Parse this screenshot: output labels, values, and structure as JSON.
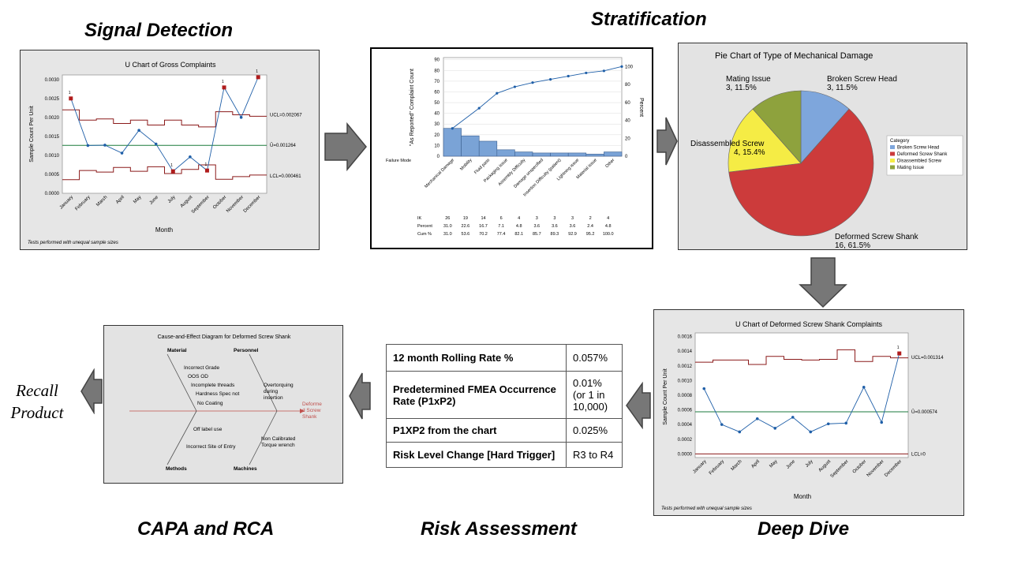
{
  "stage_titles": {
    "signal_detection": "Signal Detection",
    "stratification": "Stratification",
    "deep_dive": "Deep Dive",
    "risk_assessment": "Risk Assessment",
    "capa_rca": "CAPA and RCA",
    "recall_line1": "Recall",
    "recall_line2": "Product"
  },
  "u_chart_gross": {
    "title": "U Chart of Gross Complaints",
    "ylabel": "Sample Count Per Unit",
    "xlabel": "Month",
    "footnote": "Tests performed with unequal sample sizes",
    "ucl_label": "UCL=0.002067",
    "center_label": "Ū=0.001264",
    "lcl_label": "LCL=0.000461",
    "yticks": [
      "0.0030",
      "0.0025",
      "0.0020",
      "0.0015",
      "0.0010",
      "0.0005",
      "0.0000"
    ],
    "months": [
      "January",
      "February",
      "March",
      "April",
      "May",
      "June",
      "July",
      "August",
      "September",
      "October",
      "November",
      "December"
    ],
    "flag": "1"
  },
  "pareto": {
    "ylabel": "\"As Reported\" Complaint Count",
    "ylabel_right": "Percent",
    "yticks_left": [
      "90",
      "80",
      "70",
      "60",
      "50",
      "40",
      "30",
      "20",
      "10",
      "0"
    ],
    "yticks_right": [
      "100",
      "80",
      "60",
      "40",
      "20",
      "0"
    ],
    "category_axis_label": "Failure Mode",
    "categories": [
      "Mechanical Damage",
      "Mobility",
      "Fluid pass",
      "Packaging issue",
      "Assembly Difficulty",
      "Damage unspecified",
      "Insertion Difficulty (patient)",
      "Lightning issue",
      "Material issue",
      "Other"
    ],
    "counts": [
      "26",
      "19",
      "14",
      "6",
      "4",
      "3",
      "3",
      "3",
      "2",
      "4"
    ],
    "percent": [
      "31.0",
      "22.6",
      "16.7",
      "7.1",
      "4.8",
      "3.6",
      "3.6",
      "3.6",
      "2.4",
      "4.8"
    ],
    "cum": [
      "31.0",
      "53.6",
      "70.2",
      "77.4",
      "82.1",
      "85.7",
      "89.3",
      "92.9",
      "95.2",
      "100.0"
    ],
    "row_labels": [
      "IK",
      "Percent",
      "Cum %"
    ]
  },
  "pie": {
    "title": "Pie Chart of Type of Mechanical Damage",
    "legend_title": "Category",
    "slices": [
      {
        "name": "Broken Screw Head",
        "label": "3, 11.5%",
        "count": 3,
        "color": "#7ea6dc"
      },
      {
        "name": "Deformed Screw Shank",
        "label": "16, 61.5%",
        "count": 16,
        "color": "#cc3b3b"
      },
      {
        "name": "Disassembled Screw",
        "label": "4, 15.4%",
        "count": 4,
        "color": "#f5ec45"
      },
      {
        "name": "Mating Issue",
        "label": "3, 11.5%",
        "count": 3,
        "color": "#8ea23d"
      }
    ]
  },
  "u_chart_deep": {
    "title": "U Chart of Deformed Screw Shank Complaints",
    "ylabel": "Sample Count Per Unit",
    "xlabel": "Month",
    "footnote": "Tests performed with unequal sample sizes",
    "ucl_label": "UCL=0.001314",
    "center_label": "Ū=0.000574",
    "lcl_label": "LCL=0",
    "yticks": [
      "0.0016",
      "0.0014",
      "0.0012",
      "0.0010",
      "0.0008",
      "0.0006",
      "0.0004",
      "0.0002",
      "0.0000"
    ],
    "months": [
      "January",
      "February",
      "March",
      "April",
      "May",
      "June",
      "July",
      "August",
      "September",
      "October",
      "November",
      "December"
    ],
    "flag": "1"
  },
  "risk_table": [
    {
      "label": "12 month Rolling Rate %",
      "value": "0.057%"
    },
    {
      "label": "Predetermined FMEA Occurrence Rate (P1xP2)",
      "value": "0.01% (or 1 in 10,000)"
    },
    {
      "label": "P1XP2 from the chart",
      "value": "0.025%"
    },
    {
      "label": "Risk Level Change [Hard Trigger]",
      "value": "R3 to R4"
    }
  ],
  "fishbone": {
    "title": "Cause-and-Effect Diagram for Deformed Screw Shank",
    "material": "Material",
    "personnel": "Personnel",
    "methods": "Methods",
    "machines": "Machines",
    "material_causes": [
      "Incorrect Grade",
      "OOS OD",
      "Incomplete threads",
      "Hardness Spec not",
      "No Coating"
    ],
    "personnel_causes": [
      "Overtorquing",
      "during",
      "insertion"
    ],
    "methods_causes": [
      "Off label use",
      "Incorrect Site of Entry"
    ],
    "machines_causes": [
      "Non Calibrated",
      "Torque wrench"
    ],
    "effect": [
      "Deforme",
      "d Screw",
      "Shank"
    ]
  }
}
